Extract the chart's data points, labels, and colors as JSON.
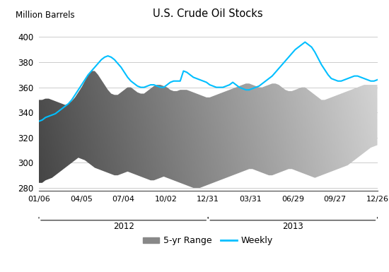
{
  "title": "U.S. Crude Oil Stocks",
  "ylabel": "Million Barrels",
  "ylim": [
    278,
    410
  ],
  "yticks": [
    280,
    300,
    320,
    340,
    360,
    380,
    400
  ],
  "background_color": "#ffffff",
  "weekly_color": "#00bfff",
  "x_tick_labels": [
    "01/06",
    "04/05",
    "07/04",
    "10/02",
    "12/31",
    "03/31",
    "06/29",
    "09/27",
    "12/26"
  ],
  "n_points": 104,
  "range_lower": [
    284,
    284,
    286,
    287,
    288,
    290,
    292,
    294,
    296,
    298,
    300,
    302,
    304,
    303,
    302,
    300,
    298,
    296,
    295,
    294,
    293,
    292,
    291,
    290,
    290,
    291,
    292,
    293,
    292,
    291,
    290,
    289,
    288,
    287,
    286,
    286,
    287,
    288,
    289,
    288,
    287,
    286,
    285,
    284,
    283,
    282,
    281,
    280,
    280,
    280,
    281,
    282,
    283,
    284,
    285,
    286,
    287,
    288,
    289,
    290,
    291,
    292,
    293,
    294,
    295,
    295,
    294,
    293,
    292,
    291,
    290,
    290,
    291,
    292,
    293,
    294,
    295,
    295,
    294,
    293,
    292,
    291,
    290,
    289,
    288,
    289,
    290,
    291,
    292,
    293,
    294,
    295,
    296,
    297,
    298,
    300,
    302,
    304,
    306,
    308,
    310,
    312,
    313,
    314
  ],
  "range_upper": [
    350,
    350,
    351,
    351,
    350,
    349,
    348,
    347,
    346,
    347,
    349,
    352,
    356,
    360,
    365,
    370,
    373,
    373,
    370,
    366,
    362,
    358,
    355,
    354,
    354,
    356,
    358,
    360,
    360,
    358,
    356,
    355,
    355,
    357,
    359,
    361,
    362,
    362,
    361,
    360,
    358,
    357,
    357,
    358,
    358,
    358,
    357,
    356,
    355,
    354,
    353,
    352,
    352,
    353,
    354,
    355,
    356,
    357,
    358,
    359,
    360,
    361,
    362,
    363,
    363,
    362,
    361,
    360,
    360,
    361,
    362,
    363,
    363,
    362,
    360,
    358,
    357,
    357,
    358,
    359,
    360,
    360,
    358,
    356,
    354,
    352,
    350,
    350,
    351,
    352,
    353,
    354,
    355,
    356,
    357,
    358,
    359,
    360,
    361,
    362,
    362,
    362,
    362,
    362
  ],
  "weekly": [
    333,
    334,
    336,
    337,
    338,
    339,
    341,
    343,
    345,
    347,
    350,
    354,
    358,
    362,
    366,
    370,
    373,
    376,
    379,
    382,
    384,
    385,
    384,
    382,
    379,
    376,
    372,
    368,
    365,
    363,
    361,
    360,
    360,
    361,
    362,
    362,
    361,
    360,
    360,
    362,
    364,
    365,
    365,
    365,
    373,
    372,
    370,
    368,
    367,
    366,
    365,
    364,
    362,
    361,
    360,
    360,
    360,
    361,
    362,
    364,
    362,
    360,
    359,
    358,
    358,
    359,
    360,
    361,
    363,
    365,
    367,
    369,
    372,
    375,
    378,
    381,
    384,
    387,
    390,
    392,
    394,
    396,
    394,
    392,
    388,
    383,
    378,
    374,
    370,
    367,
    366,
    365,
    365,
    366,
    367,
    368,
    369,
    369,
    368,
    367,
    366,
    365,
    365,
    366
  ]
}
